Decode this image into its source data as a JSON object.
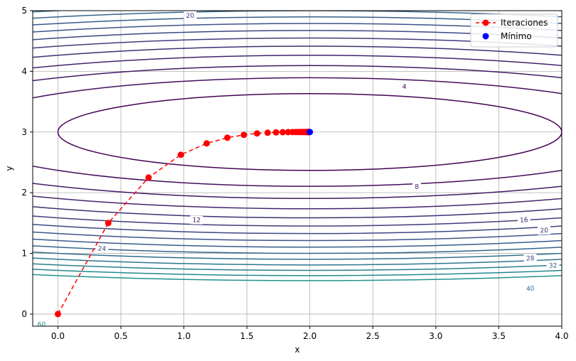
{
  "chart_data": {
    "type": "contour",
    "xlabel": "x",
    "ylabel": "y",
    "xlim": [
      -0.2,
      4.0
    ],
    "ylim": [
      -0.2,
      5.0
    ],
    "x_ticks": [
      "0.0",
      "0.5",
      "1.0",
      "1.5",
      "2.0",
      "2.5",
      "3.0",
      "3.5",
      "4.0"
    ],
    "y_ticks": [
      "0",
      "1",
      "2",
      "3",
      "4",
      "5"
    ],
    "grid": true,
    "function": "(x-2)^2 + 10*(y-3)^2",
    "contour_levels": [
      4,
      8,
      12,
      16,
      20,
      24,
      28,
      32,
      36,
      40,
      44,
      48,
      52,
      56,
      60
    ],
    "contour_labels": [
      {
        "level": "4",
        "x": 2.75,
        "y": 3.75
      },
      {
        "level": "8",
        "x": 2.85,
        "y": 2.1
      },
      {
        "level": "12",
        "x": 1.1,
        "y": 1.55
      },
      {
        "level": "16",
        "x": 3.7,
        "y": 1.55
      },
      {
        "level": "20",
        "x": 1.05,
        "y": 4.92
      },
      {
        "level": "20",
        "x": 3.86,
        "y": 1.38
      },
      {
        "level": "24",
        "x": 0.35,
        "y": 1.08
      },
      {
        "level": "28",
        "x": 3.75,
        "y": 0.92
      },
      {
        "level": "32",
        "x": 3.93,
        "y": 0.8
      },
      {
        "level": "40",
        "x": 3.75,
        "y": 0.42
      },
      {
        "level": "60",
        "x": -0.13,
        "y": -0.17
      }
    ],
    "series": [
      {
        "name": "Iteraciones",
        "color": "#ff0000",
        "line_style": "dashed",
        "marker": "circle",
        "x": [
          0.0,
          0.4,
          0.72,
          0.976,
          1.181,
          1.345,
          1.476,
          1.581,
          1.665,
          1.732,
          1.785,
          1.828,
          1.863,
          1.89,
          1.912,
          1.93,
          1.944,
          1.955,
          1.964,
          1.971,
          1.977,
          1.982,
          1.985,
          1.988,
          1.991,
          1.993,
          1.994,
          1.995,
          1.996,
          1.997
        ],
        "y": [
          0.0,
          1.5,
          2.25,
          2.625,
          2.8125,
          2.906,
          2.953,
          2.977,
          2.988,
          2.994,
          2.997,
          2.9985,
          2.9993,
          2.9996,
          2.9998,
          2.9999,
          3.0,
          3.0,
          3.0,
          3.0,
          3.0,
          3.0,
          3.0,
          3.0,
          3.0,
          3.0,
          3.0,
          3.0,
          3.0,
          3.0
        ]
      },
      {
        "name": "Mínimo",
        "color": "#0000ff",
        "marker": "circle",
        "x": [
          2.0
        ],
        "y": [
          3.0
        ]
      }
    ],
    "legend": {
      "placement": "top-right",
      "entries": [
        "Iteraciones",
        "Mínimo"
      ]
    }
  }
}
